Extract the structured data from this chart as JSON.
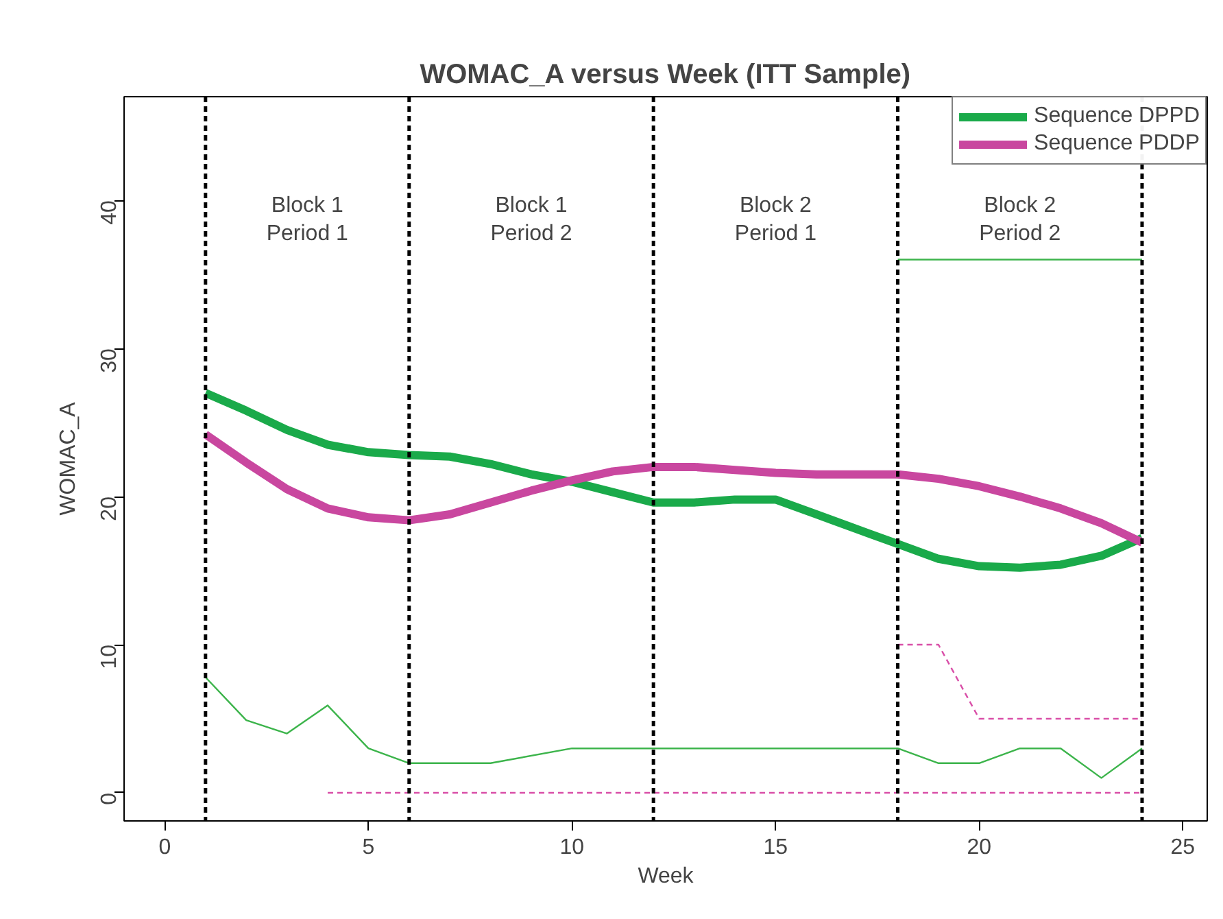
{
  "chart_data": {
    "type": "line",
    "title": "WOMAC_A versus Week (ITT Sample)",
    "xlabel": "Week",
    "ylabel": "WOMAC_A",
    "xlim": [
      -1,
      25.6
    ],
    "ylim": [
      -1.9,
      47
    ],
    "xticks": [
      0,
      5,
      10,
      15,
      20,
      25
    ],
    "yticks": [
      0,
      10,
      20,
      30,
      40
    ],
    "grid": false,
    "legend": "top right",
    "marker": "none",
    "series": [
      {
        "color": "#3cb44b",
        "line_style": "solid",
        "x": [
          1,
          2,
          3,
          4,
          5,
          6,
          8,
          10,
          12,
          18,
          19,
          20,
          21,
          22,
          23,
          24
        ],
        "values": [
          7.8,
          4.9,
          4,
          5.9,
          3,
          2,
          2,
          3,
          3,
          3,
          2,
          2,
          3,
          3,
          1,
          3
        ]
      },
      {
        "color": "#d94fa8",
        "line_style": "dashed",
        "x": [
          4,
          24
        ],
        "values": [
          0,
          0
        ]
      },
      {
        "color": "#d94fa8",
        "line_style": "dashed",
        "x": [
          18,
          19,
          20,
          24
        ],
        "values": [
          10,
          10,
          5,
          5
        ]
      },
      {
        "color": "#3cb44b",
        "line_style": "solid",
        "x": [
          18,
          24
        ],
        "values": [
          36,
          36
        ]
      },
      {
        "name": "Sequence DPPD",
        "color": "#1aaa4a",
        "line_style": "solid",
        "x": [
          1,
          2,
          3,
          4,
          5,
          6,
          7,
          8,
          9,
          10,
          11,
          12,
          13,
          14,
          15,
          16,
          17,
          18,
          19,
          20,
          21,
          22,
          23,
          24
        ],
        "values": [
          27,
          25.8,
          24.5,
          23.5,
          23,
          22.8,
          22.7,
          22.2,
          21.5,
          21,
          20.3,
          19.6,
          19.6,
          19.8,
          19.8,
          18.8,
          17.8,
          16.8,
          15.8,
          15.3,
          15.2,
          15.4,
          16,
          17.2
        ]
      },
      {
        "name": "Sequence PDDP",
        "color": "#c9479f",
        "line_style": "solid",
        "x": [
          1,
          2,
          3,
          4,
          5,
          6,
          7,
          8,
          9,
          10,
          11,
          12,
          13,
          14,
          15,
          16,
          17,
          18,
          19,
          20,
          21,
          22,
          23,
          24
        ],
        "values": [
          24.2,
          22.3,
          20.5,
          19.2,
          18.6,
          18.4,
          18.8,
          19.6,
          20.4,
          21.1,
          21.7,
          22,
          22,
          21.8,
          21.6,
          21.5,
          21.5,
          21.5,
          21.2,
          20.7,
          20,
          19.2,
          18.2,
          16.9
        ]
      }
    ],
    "ref_lines": [
      {
        "axis": "x",
        "value": 1,
        "color": "#000000",
        "line_style": "dashed"
      },
      {
        "axis": "x",
        "value": 6,
        "color": "#000000",
        "line_style": "dashed"
      },
      {
        "axis": "x",
        "value": 12,
        "color": "#000000",
        "line_style": "dashed"
      },
      {
        "axis": "x",
        "value": 18,
        "color": "#000000",
        "line_style": "dashed"
      },
      {
        "axis": "x",
        "value": 24,
        "color": "#000000",
        "line_style": "dashed"
      }
    ],
    "annotations": [
      "Block 1\nPeriod 1",
      "Block 1\nPeriod 2",
      "Block 2\nPeriod 1",
      "Block 2\nPeriod 2"
    ]
  }
}
